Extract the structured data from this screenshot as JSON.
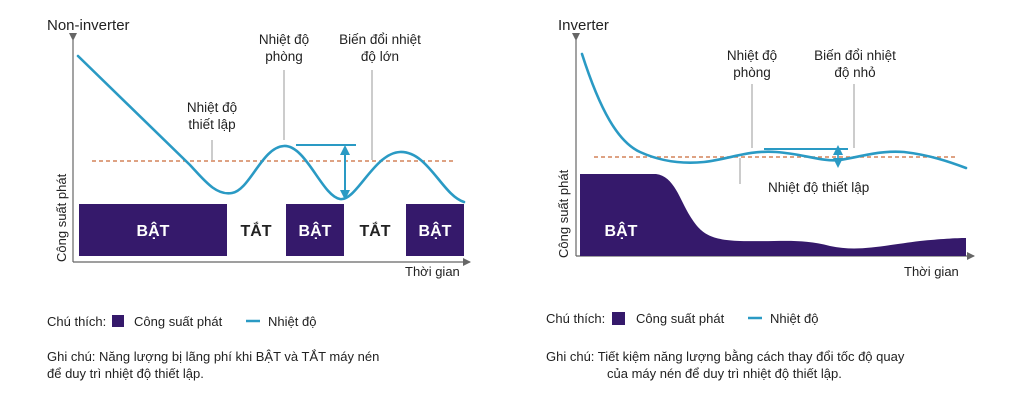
{
  "left": {
    "title": "Non-inverter",
    "label_room_1": "Nhiệt độ",
    "label_room_2": "phòng",
    "label_big_1": "Biến đổi nhiệt",
    "label_big_2": "độ lớn",
    "label_set_1": "Nhiệt độ",
    "label_set_2": "thiết lập",
    "ylabel": "Công suất phát",
    "xlabel": "Thời gian",
    "on_label": "BẬT",
    "off_label": "TẮT",
    "legend_prefix": "Chú thích:",
    "legend_power": "Công suất phát",
    "legend_temp": "Nhiệt độ",
    "note_line1": "Ghi chú: Năng lượng bị lãng phí khi BẬT và TẮT máy nén",
    "note_line2": "để duy trì nhiệt độ thiết lập."
  },
  "right": {
    "title": "Inverter",
    "label_room_1": "Nhiệt độ",
    "label_room_2": "phòng",
    "label_small_1": "Biến đổi nhiệt",
    "label_small_2": "độ nhỏ",
    "label_set": "Nhiệt độ thiết lập",
    "ylabel": "Công suất phát",
    "xlabel": "Thời gian",
    "on_label": "BẬT",
    "legend_prefix": "Chú thích:",
    "legend_power": "Công suất phát",
    "legend_temp": "Nhiệt độ",
    "note_line1": "Ghi chú: Tiết kiệm năng lượng bằng cách thay đổi tốc độ quay",
    "note_line2": "của máy nén để duy trì nhiệt độ thiết lập."
  },
  "colors": {
    "power": "#35196b",
    "temperature": "#2a9ac4",
    "setpoint": "#d4835a",
    "axis": "#666666"
  }
}
